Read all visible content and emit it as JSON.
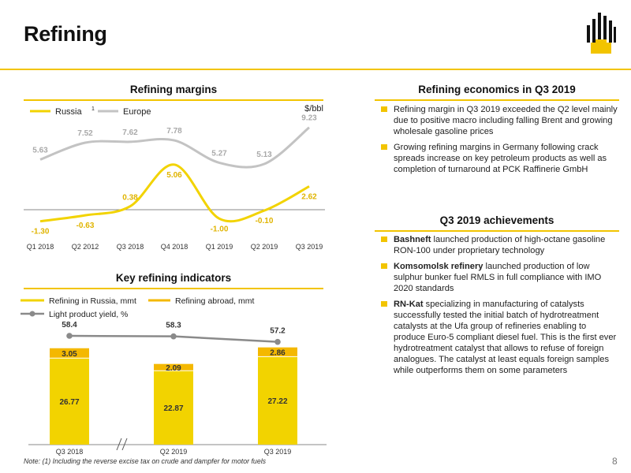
{
  "header": {
    "title": "Refining",
    "page_number": "8"
  },
  "colors": {
    "accent": "#f2c400",
    "russia": "#f2d300",
    "europe": "#c3c3c3",
    "abroad": "#f4b800",
    "yield": "#8a8a8a"
  },
  "margins": {
    "section_title": "Refining margins",
    "unit": "$/bbl",
    "chart_data": {
      "type": "line",
      "title": "Refining margins",
      "ylabel": "$/bbl",
      "categories": [
        "Q1 2018",
        "Q2 2012",
        "Q3 2018",
        "Q4 2018",
        "Q1 2019",
        "Q2 2019",
        "Q3 2019"
      ],
      "series": [
        {
          "name": "Russia",
          "values": [
            -1.3,
            -0.63,
            0.38,
            5.06,
            -1.0,
            -0.1,
            2.62
          ]
        },
        {
          "name": "Europe",
          "values": [
            5.63,
            7.52,
            7.62,
            7.78,
            5.27,
            5.13,
            9.23
          ]
        }
      ],
      "labels": {
        "russia": [
          "-1.30",
          "-0.63",
          "0.38",
          "5.06",
          "-1.00",
          "-0.10",
          "2.62"
        ],
        "europe": [
          "5.63",
          "7.52",
          "7.62",
          "7.78",
          "5.27",
          "5.13",
          "9.23"
        ]
      },
      "legend": {
        "russia": "Russia",
        "russia_sup": "1",
        "europe": "Europe",
        "position": "top-left"
      }
    }
  },
  "indicators": {
    "section_title": "Key refining indicators",
    "chart_data": {
      "type": "bar",
      "title": "Key refining indicators",
      "categories": [
        "Q3 2018",
        "Q2 2019",
        "Q3 2019"
      ],
      "series": [
        {
          "name": "Refining in Russia, mmt",
          "values": [
            26.77,
            22.87,
            27.22
          ]
        },
        {
          "name": "Refining abroad, mmt",
          "values": [
            3.05,
            2.09,
            2.86
          ]
        },
        {
          "name": "Light product yield, %",
          "values": [
            58.4,
            58.3,
            57.2
          ]
        }
      ],
      "labels": {
        "russia": [
          "26.77",
          "22.87",
          "27.22"
        ],
        "abroad": [
          "3.05",
          "2.09",
          "2.86"
        ],
        "yield": [
          "58.4",
          "58.3",
          "57.2"
        ]
      },
      "legend": {
        "russia": "Refining in Russia, mmt",
        "abroad": "Refining abroad, mmt",
        "yield": "Light product yield, %",
        "position": "top-left"
      }
    }
  },
  "economics": {
    "section_title": "Refining economics in Q3 2019",
    "bullets": [
      {
        "text": "Refining margin in Q3 2019 exceeded the Q2 level mainly due to positive macro including falling Brent and growing wholesale gasoline prices"
      },
      {
        "text": "Growing refining margins in Germany following crack spreads increase on key petroleum products as well as completion of turnaround at PCK Raffinerie GmbH"
      }
    ]
  },
  "achievements": {
    "section_title": "Q3 2019 achievements",
    "bullets": [
      {
        "bold": "Bashneft",
        "text": " launched production of high-octane gasoline RON-100 under proprietary technology"
      },
      {
        "bold": "Komsomolsk refinery",
        "text": " launched production of low sulphur bunker fuel RMLS in full compliance with IMO 2020 standards"
      },
      {
        "bold": "RN-Kat",
        "text": " specializing in manufacturing of catalysts successfully tested the initial batch of hydrotreatment catalysts at the Ufa group of refineries enabling to produce Euro-5 compliant diesel fuel. This is the first ever hydrotreatment catalyst that allows to refuse of foreign analogues. The catalyst at least equals foreign samples while outperforms them on some parameters"
      }
    ]
  },
  "footnote": "Note: (1) Including the reverse excise tax on crude and dampfer for motor fuels"
}
